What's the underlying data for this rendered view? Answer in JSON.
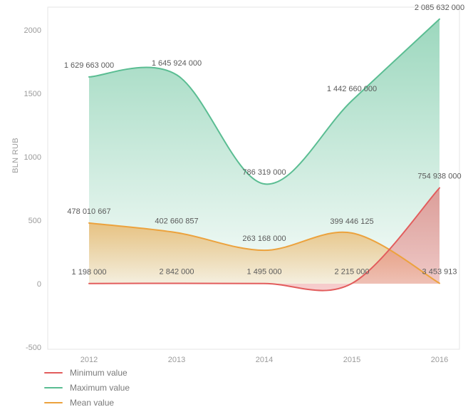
{
  "chart_data": {
    "type": "area",
    "title": "",
    "ylabel": "BLN RUB",
    "xlabel": "",
    "x_categories": [
      "2012",
      "2013",
      "2014",
      "2015",
      "2016"
    ],
    "y_ticks": [
      -500,
      0,
      500,
      1000,
      1500,
      2000
    ],
    "ylim": [
      -500,
      2000
    ],
    "grid": false,
    "legend_position": "bottom-left",
    "value_scale_divisor": 1000000,
    "series": [
      {
        "name": "Minimum value",
        "color": "#e25c5c",
        "values": [
          1198000,
          2842000,
          1495000,
          2215000,
          754938000
        ],
        "labels": [
          "1 198 000",
          "2 842 000",
          "1 495 000",
          "2 215 000",
          "754 938 000"
        ]
      },
      {
        "name": "Maximum value",
        "color": "#5abd92",
        "values": [
          1629663000,
          1645924000,
          786319000,
          1442660000,
          2085632000
        ],
        "labels": [
          "1 629 663 000",
          "1 645 924 000",
          "786 319 000",
          "1 442 660 000",
          "2 085 632 000"
        ]
      },
      {
        "name": "Mean value",
        "color": "#eca23d",
        "values": [
          478010667,
          402660857,
          263168000,
          399446125,
          3453913
        ],
        "labels": [
          "478 010 667",
          "402 660 857",
          "263 168 000",
          "399 446 125",
          "3 453 913"
        ]
      }
    ]
  }
}
